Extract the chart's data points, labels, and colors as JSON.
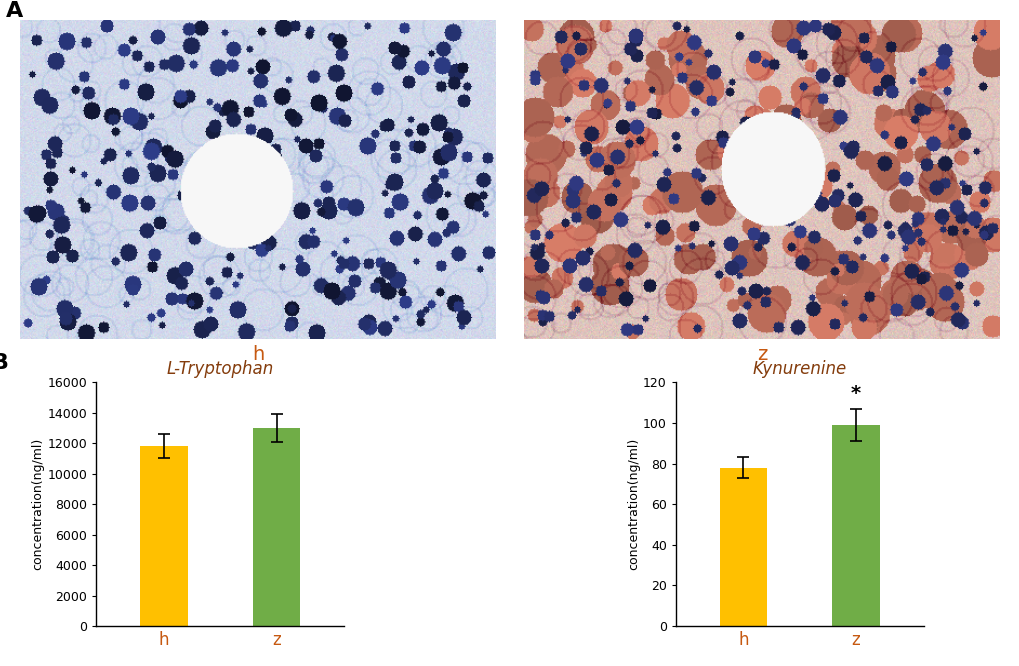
{
  "panel_A_label": "A",
  "panel_B_label": "B",
  "img_left_label": "h",
  "img_right_label": "z",
  "tryptophan_title": "L-Tryptophan",
  "kynurenine_title": "Kynurenine",
  "ylabel": "concentration(ng/ml)",
  "xtick_labels": [
    "h",
    "z"
  ],
  "bar_colors": [
    "#FFC000",
    "#70AD47"
  ],
  "tryptophan_values": [
    11800,
    13000
  ],
  "tryptophan_errors": [
    800,
    900
  ],
  "tryptophan_ylim": [
    0,
    16000
  ],
  "tryptophan_yticks": [
    0,
    2000,
    4000,
    6000,
    8000,
    10000,
    12000,
    14000,
    16000
  ],
  "kynurenine_values": [
    78,
    99
  ],
  "kynurenine_errors": [
    5,
    8
  ],
  "kynurenine_ylim": [
    0,
    120
  ],
  "kynurenine_yticks": [
    0,
    20,
    40,
    60,
    80,
    100,
    120
  ],
  "significance_label": "*",
  "label_color_orange": "#C65911",
  "title_color": "#843C0C",
  "background_color": "#FFFFFF"
}
